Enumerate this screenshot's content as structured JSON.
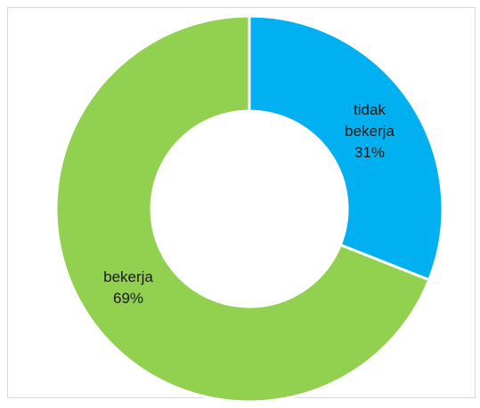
{
  "chart_data": {
    "type": "pie",
    "variant": "donut",
    "categories": [
      "tidak bekerja",
      "bekerja"
    ],
    "values": [
      31,
      69
    ],
    "value_labels": [
      "31%",
      "69%"
    ],
    "label_lines": [
      [
        "tidak",
        "bekerja",
        "31%"
      ],
      [
        "bekerja",
        "69%"
      ]
    ],
    "colors": [
      "#00B0F0",
      "#92D050"
    ],
    "legend": "none"
  }
}
